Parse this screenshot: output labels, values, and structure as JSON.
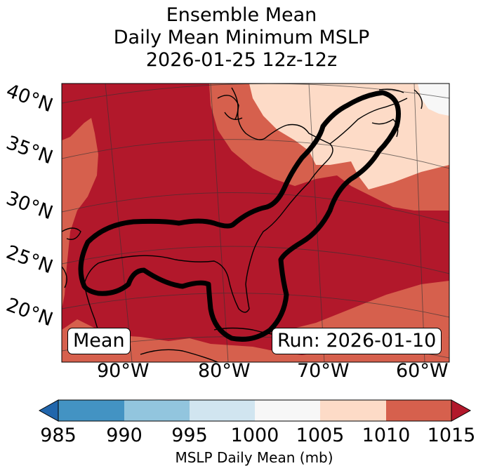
{
  "title": {
    "line1": "Ensemble Mean",
    "line2": "Daily Mean Minimum MSLP",
    "line3": "2026-01-25 12z-12z"
  },
  "map": {
    "lat_labels": [
      "40°N",
      "35°N",
      "30°N",
      "25°N",
      "20°N"
    ],
    "lon_labels": [
      "90°W",
      "80°W",
      "70°W",
      "60°W"
    ],
    "left_box": "Mean",
    "right_box": "Run: 2026-01-10",
    "colors": {
      "c1015": "#b2182b",
      "c1010": "#d6604d",
      "c1005": "#fddbc7",
      "c1000": "#f7f7f7",
      "outline": "#000000"
    }
  },
  "colorbar": {
    "ticks": [
      "985",
      "990",
      "995",
      "1000",
      "1005",
      "1010",
      "1015"
    ],
    "label": "MSLP Daily Mean (mb)",
    "colors": [
      "#2166ac",
      "#4393c3",
      "#92c5de",
      "#d1e5f0",
      "#f7f7f7",
      "#fddbc7",
      "#d6604d",
      "#b2182b"
    ]
  }
}
